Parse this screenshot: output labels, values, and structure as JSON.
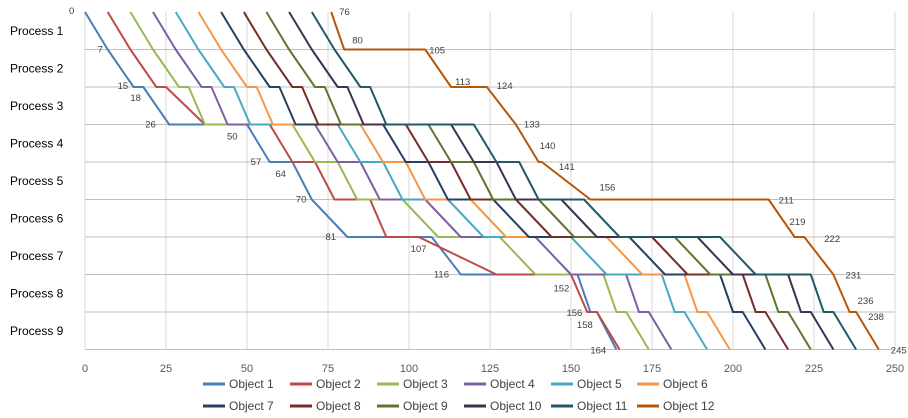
{
  "chart_data": {
    "type": "line",
    "title": "",
    "xlabel": "",
    "ylabel": "",
    "xlim": [
      0,
      250
    ],
    "x_ticks": [
      0,
      25,
      50,
      75,
      100,
      125,
      150,
      175,
      200,
      225,
      250
    ],
    "y_categories": [
      "Process 1",
      "Process 2",
      "Process 3",
      "Process 4",
      "Process 5",
      "Process 6",
      "Process 7",
      "Process 8",
      "Process 9"
    ],
    "grid": true,
    "legend_position": "bottom",
    "series": [
      {
        "name": "Object 1",
        "color": "#4a7ebb",
        "points": [
          [
            0,
            0
          ],
          [
            7,
            1
          ],
          [
            15,
            2
          ],
          [
            18,
            2
          ],
          [
            26,
            3
          ],
          [
            50,
            3
          ],
          [
            57,
            4
          ],
          [
            64,
            4
          ],
          [
            70,
            5
          ],
          [
            81,
            6
          ],
          [
            107,
            6
          ],
          [
            116,
            7
          ],
          [
            152,
            7
          ],
          [
            156,
            8
          ],
          [
            158,
            8
          ],
          [
            164,
            9
          ]
        ]
      },
      {
        "name": "Object 2",
        "color": "#be4b48",
        "points": [
          [
            7,
            0
          ],
          [
            14,
            1
          ],
          [
            22,
            2
          ],
          [
            25,
            2
          ],
          [
            37,
            3
          ],
          [
            57,
            3
          ],
          [
            64,
            4
          ],
          [
            71,
            4
          ],
          [
            77,
            5
          ],
          [
            88,
            5
          ],
          [
            93,
            6
          ],
          [
            103,
            6
          ],
          [
            127,
            7
          ],
          [
            150,
            7
          ],
          [
            155,
            8
          ],
          [
            158,
            8
          ],
          [
            165,
            9
          ]
        ]
      },
      {
        "name": "Object 3",
        "color": "#98b954",
        "points": [
          [
            14,
            0
          ],
          [
            21,
            1
          ],
          [
            29,
            2
          ],
          [
            32,
            2
          ],
          [
            37,
            3
          ],
          [
            64,
            3
          ],
          [
            71,
            4
          ],
          [
            78,
            4
          ],
          [
            84,
            5
          ],
          [
            98,
            5
          ],
          [
            109,
            6
          ],
          [
            128,
            6
          ],
          [
            139,
            7
          ],
          [
            160,
            7
          ],
          [
            164,
            8
          ],
          [
            167,
            8
          ],
          [
            174,
            9
          ]
        ]
      },
      {
        "name": "Object 4",
        "color": "#7d60a0",
        "points": [
          [
            21,
            0
          ],
          [
            28,
            1
          ],
          [
            36,
            2
          ],
          [
            39,
            2
          ],
          [
            44,
            3
          ],
          [
            71,
            3
          ],
          [
            78,
            4
          ],
          [
            85,
            4
          ],
          [
            91,
            5
          ],
          [
            105,
            5
          ],
          [
            116,
            6
          ],
          [
            139,
            6
          ],
          [
            150,
            7
          ],
          [
            167,
            7
          ],
          [
            171,
            8
          ],
          [
            174,
            8
          ],
          [
            181,
            9
          ]
        ]
      },
      {
        "name": "Object 5",
        "color": "#46aac5",
        "points": [
          [
            28,
            0
          ],
          [
            35,
            1
          ],
          [
            43,
            2
          ],
          [
            46,
            2
          ],
          [
            51,
            3
          ],
          [
            78,
            3
          ],
          [
            85,
            4
          ],
          [
            92,
            4
          ],
          [
            98,
            5
          ],
          [
            112,
            5
          ],
          [
            123,
            6
          ],
          [
            150,
            6
          ],
          [
            161,
            7
          ],
          [
            178,
            7
          ],
          [
            182,
            8
          ],
          [
            185,
            8
          ],
          [
            192,
            9
          ]
        ]
      },
      {
        "name": "Object 6",
        "color": "#f79646",
        "points": [
          [
            35,
            0
          ],
          [
            42,
            1
          ],
          [
            50,
            2
          ],
          [
            53,
            2
          ],
          [
            58,
            3
          ],
          [
            85,
            3
          ],
          [
            92,
            4
          ],
          [
            99,
            4
          ],
          [
            105,
            5
          ],
          [
            119,
            5
          ],
          [
            130,
            6
          ],
          [
            161,
            6
          ],
          [
            172,
            7
          ],
          [
            185,
            7
          ],
          [
            189,
            8
          ],
          [
            192,
            8
          ],
          [
            199,
            9
          ]
        ]
      },
      {
        "name": "Object 7",
        "color": "#254061",
        "points": [
          [
            42,
            0
          ],
          [
            49,
            1
          ],
          [
            57,
            2
          ],
          [
            60,
            2
          ],
          [
            65,
            3
          ],
          [
            92,
            3
          ],
          [
            99,
            4
          ],
          [
            106,
            4
          ],
          [
            112,
            5
          ],
          [
            126,
            5
          ],
          [
            137,
            6
          ],
          [
            168,
            6
          ],
          [
            179,
            7
          ],
          [
            196,
            7
          ],
          [
            200,
            8
          ],
          [
            203,
            8
          ],
          [
            210,
            9
          ]
        ]
      },
      {
        "name": "Object 8",
        "color": "#772c2a",
        "points": [
          [
            49,
            0
          ],
          [
            56,
            1
          ],
          [
            64,
            2
          ],
          [
            67,
            2
          ],
          [
            72,
            3
          ],
          [
            99,
            3
          ],
          [
            106,
            4
          ],
          [
            113,
            4
          ],
          [
            119,
            5
          ],
          [
            133,
            5
          ],
          [
            144,
            6
          ],
          [
            175,
            6
          ],
          [
            186,
            7
          ],
          [
            203,
            7
          ],
          [
            207,
            8
          ],
          [
            210,
            8
          ],
          [
            217,
            9
          ]
        ]
      },
      {
        "name": "Object 9",
        "color": "#5f7530",
        "points": [
          [
            56,
            0
          ],
          [
            63,
            1
          ],
          [
            71,
            2
          ],
          [
            74,
            2
          ],
          [
            79,
            3
          ],
          [
            106,
            3
          ],
          [
            113,
            4
          ],
          [
            120,
            4
          ],
          [
            126,
            5
          ],
          [
            140,
            5
          ],
          [
            151,
            6
          ],
          [
            182,
            6
          ],
          [
            193,
            7
          ],
          [
            210,
            7
          ],
          [
            214,
            8
          ],
          [
            217,
            8
          ],
          [
            224,
            9
          ]
        ]
      },
      {
        "name": "Object 10",
        "color": "#403152",
        "points": [
          [
            63,
            0
          ],
          [
            70,
            1
          ],
          [
            78,
            2
          ],
          [
            81,
            2
          ],
          [
            86,
            3
          ],
          [
            113,
            3
          ],
          [
            120,
            4
          ],
          [
            127,
            4
          ],
          [
            133,
            5
          ],
          [
            147,
            5
          ],
          [
            158,
            6
          ],
          [
            189,
            6
          ],
          [
            200,
            7
          ],
          [
            217,
            7
          ],
          [
            221,
            8
          ],
          [
            224,
            8
          ],
          [
            231,
            9
          ]
        ]
      },
      {
        "name": "Object 11",
        "color": "#215968",
        "points": [
          [
            70,
            0
          ],
          [
            77,
            1
          ],
          [
            85,
            2
          ],
          [
            88,
            2
          ],
          [
            93,
            3
          ],
          [
            120,
            3
          ],
          [
            127,
            4
          ],
          [
            134,
            4
          ],
          [
            140,
            5
          ],
          [
            154,
            5
          ],
          [
            165,
            6
          ],
          [
            196,
            6
          ],
          [
            207,
            7
          ],
          [
            224,
            7
          ],
          [
            228,
            8
          ],
          [
            231,
            8
          ],
          [
            238,
            9
          ]
        ]
      },
      {
        "name": "Object 12",
        "color": "#b65708",
        "points": [
          [
            76,
            0
          ],
          [
            80,
            1
          ],
          [
            105,
            1
          ],
          [
            113,
            2
          ],
          [
            124,
            2
          ],
          [
            133,
            3
          ],
          [
            140,
            4
          ],
          [
            141,
            4
          ],
          [
            156,
            5
          ],
          [
            211,
            5
          ],
          [
            219,
            6
          ],
          [
            222,
            6
          ],
          [
            231,
            7
          ],
          [
            236,
            8
          ],
          [
            238,
            8
          ],
          [
            245,
            9
          ]
        ]
      }
    ],
    "annotations": [
      {
        "text": "0",
        "x": 0,
        "level": 0
      },
      {
        "text": "7",
        "x": 7,
        "level": 1
      },
      {
        "text": "15",
        "x": 15,
        "level": 2
      },
      {
        "text": "18",
        "x": 18,
        "level": 2
      },
      {
        "text": "26",
        "x": 26,
        "level": 3
      },
      {
        "text": "50",
        "x": 50,
        "level": 3
      },
      {
        "text": "57",
        "x": 57,
        "level": 4
      },
      {
        "text": "64",
        "x": 64,
        "level": 4
      },
      {
        "text": "70",
        "x": 70,
        "level": 5
      },
      {
        "text": "81",
        "x": 81,
        "level": 6
      },
      {
        "text": "107",
        "x": 107,
        "level": 6
      },
      {
        "text": "116",
        "x": 116,
        "level": 7
      },
      {
        "text": "152",
        "x": 152,
        "level": 7
      },
      {
        "text": "156",
        "x": 156,
        "level": 8
      },
      {
        "text": "158",
        "x": 158,
        "level": 8
      },
      {
        "text": "164",
        "x": 164,
        "level": 9
      },
      {
        "text": "76",
        "x": 76,
        "level": 0
      },
      {
        "text": "80",
        "x": 80,
        "level": 1
      },
      {
        "text": "105",
        "x": 105,
        "level": 1
      },
      {
        "text": "113",
        "x": 113,
        "level": 2
      },
      {
        "text": "124",
        "x": 124,
        "level": 2
      },
      {
        "text": "133",
        "x": 133,
        "level": 3
      },
      {
        "text": "140",
        "x": 140,
        "level": 4
      },
      {
        "text": "141",
        "x": 141,
        "level": 4
      },
      {
        "text": "156",
        "x": 156,
        "level": 5
      },
      {
        "text": "211",
        "x": 211,
        "level": 5
      },
      {
        "text": "219",
        "x": 219,
        "level": 6
      },
      {
        "text": "222",
        "x": 222,
        "level": 6
      },
      {
        "text": "231",
        "x": 231,
        "level": 7
      },
      {
        "text": "236",
        "x": 236,
        "level": 8
      },
      {
        "text": "238",
        "x": 238,
        "level": 8
      },
      {
        "text": "245",
        "x": 245,
        "level": 9
      }
    ]
  }
}
